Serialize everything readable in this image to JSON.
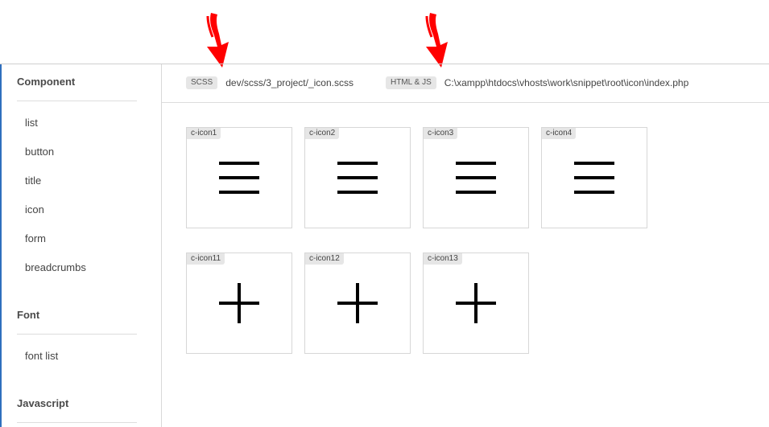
{
  "sidebar": {
    "sections": [
      {
        "heading": "Component",
        "items": [
          {
            "label": "list"
          },
          {
            "label": "button"
          },
          {
            "label": "title"
          },
          {
            "label": "icon"
          },
          {
            "label": "form"
          },
          {
            "label": "breadcrumbs"
          }
        ]
      },
      {
        "heading": "Font",
        "items": [
          {
            "label": "font list"
          }
        ]
      },
      {
        "heading": "Javascript",
        "items": []
      }
    ]
  },
  "topbar": {
    "scss": {
      "tag": "SCSS",
      "path": "dev/scss/3_project/_icon.scss"
    },
    "html_js": {
      "tag": "HTML & JS",
      "path": "C:\\xampp\\htdocs\\vhosts\\work\\snippet\\root\\icon\\index.php"
    }
  },
  "icons": [
    {
      "label": "c-icon1",
      "icon": "hamburger-icon"
    },
    {
      "label": "c-icon2",
      "icon": "hamburger-icon"
    },
    {
      "label": "c-icon3",
      "icon": "hamburger-icon"
    },
    {
      "label": "c-icon4",
      "icon": "hamburger-icon"
    },
    {
      "label": "c-icon11",
      "icon": "plus-icon"
    },
    {
      "label": "c-icon12",
      "icon": "plus-icon"
    },
    {
      "label": "c-icon13",
      "icon": "plus-icon"
    }
  ],
  "colors": {
    "accent": "#2f6fbd",
    "annotation_arrow": "#ff0000",
    "tag_bg": "#e6e6e6",
    "border": "#d7d7d7"
  }
}
